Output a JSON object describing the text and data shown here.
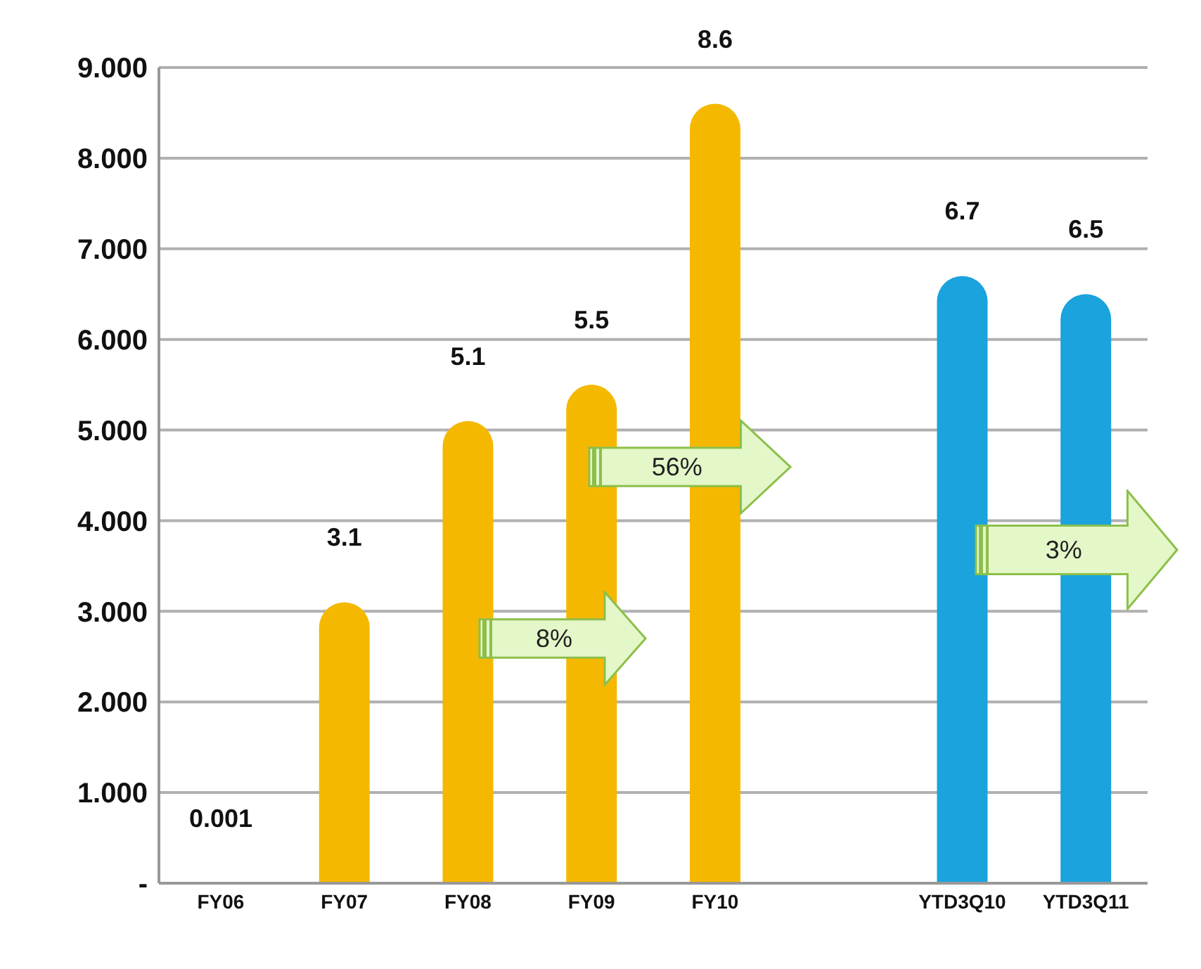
{
  "chart_data": {
    "type": "bar",
    "categories": [
      "FY06",
      "FY07",
      "FY08",
      "FY09",
      "FY10",
      null,
      "YTD3Q10",
      "YTD3Q11"
    ],
    "values": [
      0.001,
      3.1,
      5.1,
      5.5,
      8.6,
      null,
      6.7,
      6.5
    ],
    "colors": [
      "#9a7a10",
      "#f5b800",
      "#f5b800",
      "#f5b800",
      "#f5b800",
      "#f5b800",
      "#1aa3dd",
      "#1aa3dd"
    ],
    "ylim": [
      0,
      9
    ],
    "yticks": [
      {
        "value": 0,
        "label": "-"
      },
      {
        "value": 1,
        "label": "1.000"
      },
      {
        "value": 2,
        "label": "2.000"
      },
      {
        "value": 3,
        "label": "3.000"
      },
      {
        "value": 4,
        "label": "4.000"
      },
      {
        "value": 5,
        "label": "5.000"
      },
      {
        "value": 6,
        "label": "6.000"
      },
      {
        "value": 7,
        "label": "7.000"
      },
      {
        "value": 8,
        "label": "8.000"
      },
      {
        "value": 9,
        "label": "9.000"
      }
    ],
    "grid": "y",
    "data_labels": true,
    "annotations": [
      "8%",
      "56%",
      "3%"
    ]
  }
}
